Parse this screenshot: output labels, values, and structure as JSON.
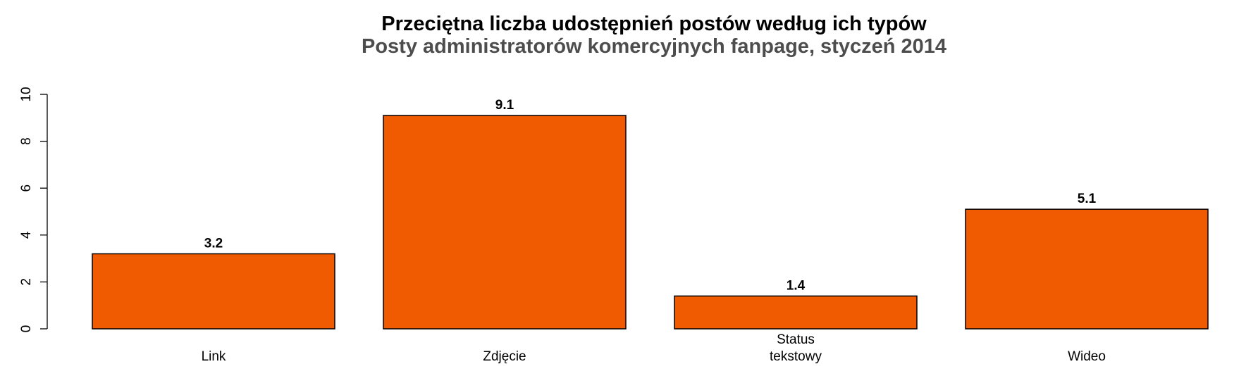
{
  "chart_data": {
    "type": "bar",
    "title": "Przeciętna liczba udostępnień postów według ich typów",
    "subtitle": "Posty administratorów komercyjnych fanpage, styczeń 2014",
    "categories": [
      [
        "Link"
      ],
      [
        "Zdjęcie"
      ],
      [
        "Status",
        "tekstowy"
      ],
      [
        "Wideo"
      ]
    ],
    "values": [
      3.2,
      9.1,
      1.4,
      5.1
    ],
    "value_labels": [
      "3.2",
      "9.1",
      "1.4",
      "5.1"
    ],
    "ylim": [
      0,
      10
    ],
    "yticks": [
      0,
      2,
      4,
      6,
      8,
      10
    ],
    "xlabel": "",
    "ylabel": "",
    "grid": false,
    "bar_color": "#f05a00"
  }
}
